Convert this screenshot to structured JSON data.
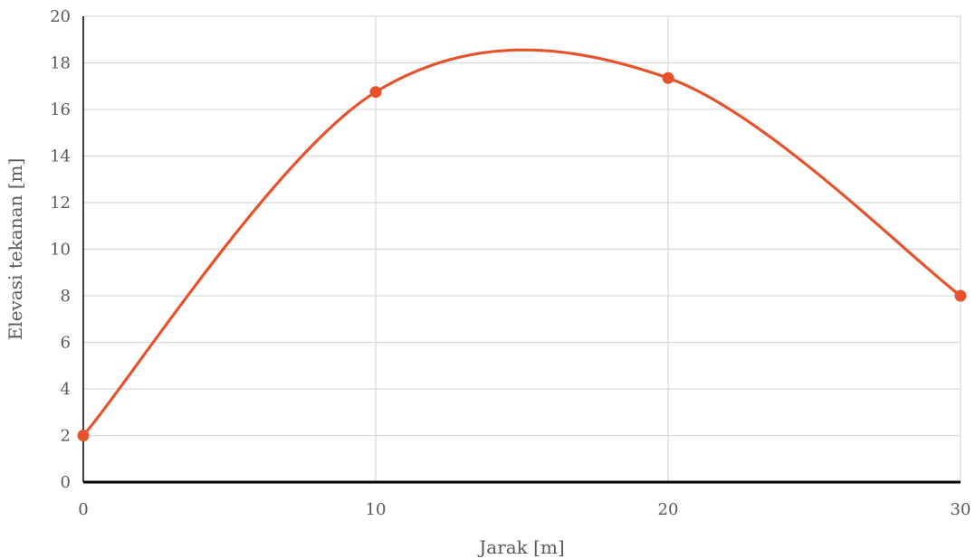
{
  "chart_data": {
    "type": "line",
    "title": "",
    "xlabel": "Jarak [m]",
    "ylabel": "Elevasi tekanan [m]",
    "x": [
      0,
      10,
      20,
      30
    ],
    "series": [
      {
        "name": "",
        "values": [
          2,
          16.75,
          17.35,
          8
        ]
      }
    ],
    "xlim": [
      0,
      30
    ],
    "ylim": [
      0,
      20
    ],
    "x_ticks": [
      0,
      10,
      20,
      30
    ],
    "y_ticks": [
      0,
      2,
      4,
      6,
      8,
      10,
      12,
      14,
      16,
      18,
      20
    ],
    "smooth": true,
    "markers": true,
    "grid": true,
    "legend": "none",
    "colors": {
      "series": "#E6522C",
      "grid": "#D9D9D9",
      "axis": "#000000",
      "text": "#595959"
    }
  }
}
